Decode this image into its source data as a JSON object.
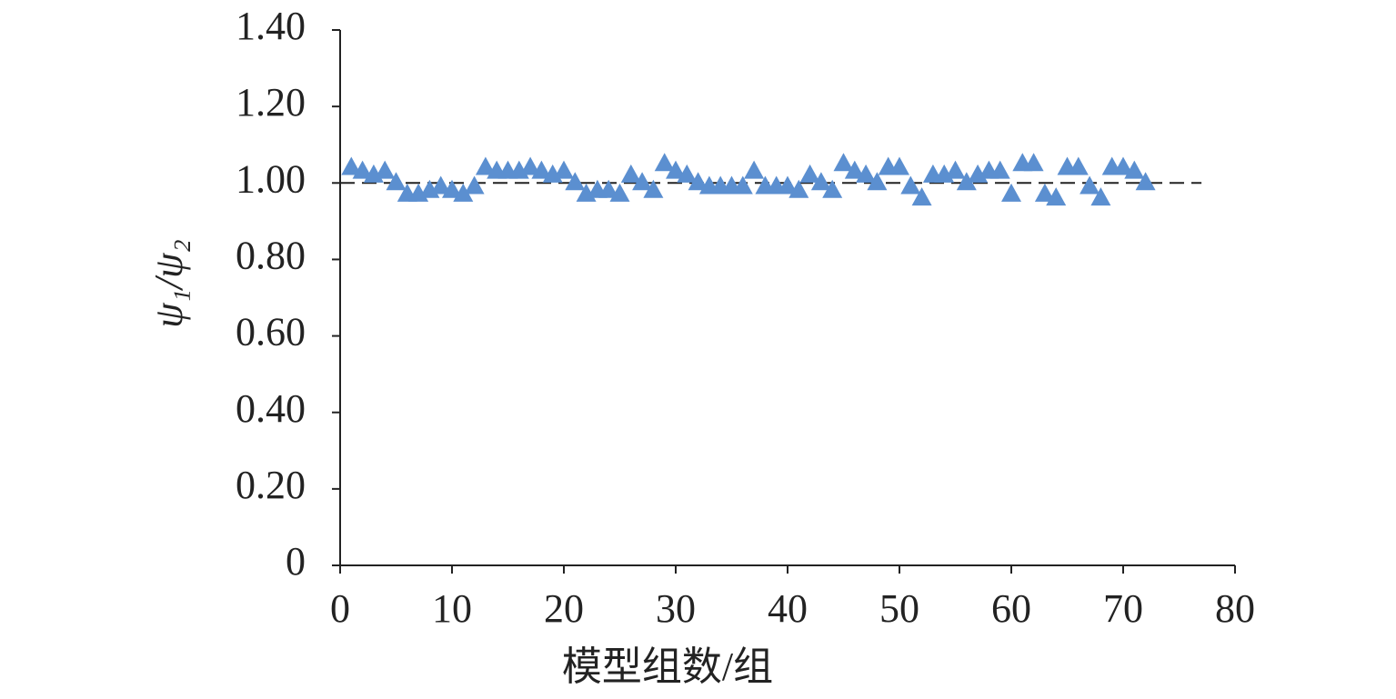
{
  "chart_data": {
    "type": "scatter",
    "x_label": "模型组数/组",
    "y_label": "ψ₁/ψ₂",
    "series": [
      {
        "color": "#5b8fd0",
        "x": [
          1,
          2,
          3,
          4,
          5,
          6,
          7,
          8,
          9,
          10,
          11,
          12,
          13,
          14,
          15,
          16,
          17,
          18,
          19,
          20,
          21,
          22,
          23,
          24,
          25,
          26,
          27,
          28,
          29,
          30,
          31,
          32,
          33,
          34,
          35,
          36,
          37,
          38,
          39,
          40,
          41,
          42,
          43,
          44,
          45,
          46,
          47,
          48,
          49,
          50,
          51,
          52,
          53,
          54,
          55,
          56,
          57,
          58,
          59,
          60,
          61,
          62,
          63,
          64,
          65,
          66,
          67,
          68,
          69,
          70,
          71,
          72
        ],
        "values": [
          1.04,
          1.03,
          1.02,
          1.03,
          1.0,
          0.97,
          0.97,
          0.98,
          0.99,
          0.98,
          0.97,
          0.99,
          1.04,
          1.03,
          1.03,
          1.03,
          1.04,
          1.03,
          1.02,
          1.03,
          1.0,
          0.97,
          0.98,
          0.98,
          0.97,
          1.02,
          1.0,
          0.98,
          1.05,
          1.03,
          1.02,
          1.0,
          0.99,
          0.99,
          0.99,
          0.99,
          1.03,
          0.99,
          0.99,
          0.99,
          0.98,
          1.02,
          1.0,
          0.98,
          1.05,
          1.03,
          1.02,
          1.0,
          1.04,
          1.04,
          0.99,
          0.96,
          1.02,
          1.02,
          1.03,
          1.0,
          1.02,
          1.03,
          1.03,
          0.97,
          1.05,
          1.05,
          0.97,
          0.96,
          1.04,
          1.04,
          0.99,
          0.96,
          1.04,
          1.04,
          1.03,
          1.0
        ]
      }
    ],
    "reference_line": {
      "value": 1,
      "x_end": 77
    },
    "xlim": [
      0,
      80
    ],
    "xticks": [
      0,
      10,
      20,
      30,
      40,
      50,
      60,
      70,
      80
    ],
    "ylim": [
      0,
      1.4
    ],
    "yticks": [
      0,
      {
        "value": 0.2,
        "label": "0.20"
      },
      {
        "value": 0.4,
        "label": "0.40"
      },
      {
        "value": 0.6,
        "label": "0.60"
      },
      {
        "value": 0.8,
        "label": "0.80"
      },
      {
        "value": 1.0,
        "label": "1.00"
      },
      {
        "value": 1.2,
        "label": "1.20"
      },
      {
        "value": 1.4,
        "label": "1.40"
      }
    ]
  }
}
